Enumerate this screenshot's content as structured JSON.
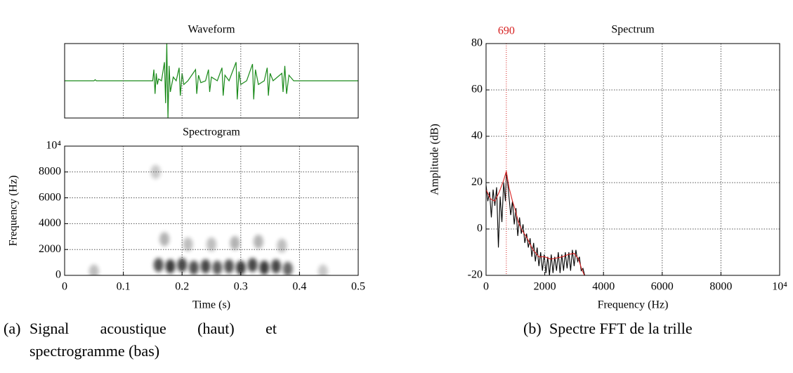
{
  "chart_data": [
    {
      "type": "line",
      "title": "Waveform",
      "series": [
        {
          "color": "#1a8a1a",
          "x": [
            0,
            0.05,
            0.052,
            0.054,
            0.15,
            0.152,
            0.154,
            0.156,
            0.158,
            0.16,
            0.165,
            0.17,
            0.172,
            0.174,
            0.176,
            0.178,
            0.18,
            0.185,
            0.19,
            0.195,
            0.197,
            0.2,
            0.203,
            0.21,
            0.223,
            0.225,
            0.228,
            0.232,
            0.24,
            0.245,
            0.247,
            0.25,
            0.26,
            0.268,
            0.27,
            0.273,
            0.28,
            0.292,
            0.294,
            0.297,
            0.3,
            0.31,
            0.32,
            0.322,
            0.325,
            0.33,
            0.34,
            0.345,
            0.347,
            0.35,
            0.355,
            0.37,
            0.372,
            0.375,
            0.378,
            0.382,
            0.39,
            0.4,
            0.5
          ],
          "values": [
            0,
            0,
            0.03,
            0,
            0,
            0.3,
            -0.35,
            0.2,
            -0.1,
            0.05,
            0,
            0.5,
            -0.6,
            1,
            -1,
            0.4,
            -0.3,
            0.1,
            0,
            0.35,
            -0.4,
            0.2,
            -0.1,
            0,
            0.3,
            -0.35,
            0.15,
            -0.05,
            0,
            0.3,
            -0.3,
            0.1,
            0,
            0.35,
            -0.4,
            0.15,
            0,
            0.5,
            -0.5,
            0.25,
            -0.1,
            0,
            0.45,
            -0.5,
            0.3,
            -0.1,
            0,
            0.35,
            -0.4,
            0.2,
            0,
            0.2,
            -0.3,
            0.4,
            -0.35,
            0.15,
            0,
            0,
            0
          ]
        }
      ],
      "xlim": [
        0,
        0.5
      ],
      "ylim": [
        -1,
        1
      ],
      "xgrid": [
        0.1,
        0.2,
        0.3,
        0.4
      ]
    },
    {
      "type": "spectrogram",
      "title": "Spectrogram",
      "xlabel": "Time (s)",
      "ylabel": "Frequency (Hz)",
      "x": [
        0.05,
        0.155,
        0.16,
        0.18,
        0.2,
        0.22,
        0.24,
        0.26,
        0.28,
        0.3,
        0.32,
        0.34,
        0.36,
        0.38,
        0.17,
        0.21,
        0.25,
        0.29,
        0.33,
        0.37,
        0.44
      ],
      "y": [
        300,
        8000,
        800,
        700,
        800,
        600,
        700,
        600,
        700,
        600,
        800,
        600,
        700,
        500,
        2800,
        2400,
        2400,
        2500,
        2600,
        2300,
        300
      ],
      "values": [
        0.3,
        0.25,
        0.8,
        0.9,
        0.85,
        0.8,
        0.85,
        0.75,
        0.8,
        0.9,
        0.85,
        0.9,
        0.85,
        0.7,
        0.35,
        0.3,
        0.3,
        0.35,
        0.35,
        0.3,
        0.25
      ],
      "xlim": [
        0,
        0.5
      ],
      "ylim": [
        0,
        10000
      ],
      "xticks": [
        0,
        0.1,
        0.2,
        0.3,
        0.4,
        0.5
      ],
      "yticks": [
        0,
        2000,
        4000,
        6000,
        8000,
        {
          "value": 10000,
          "label": "10⁴"
        }
      ],
      "grid": true
    },
    {
      "type": "line",
      "title": "Spectrum",
      "xlabel": "Frequency (Hz)",
      "ylabel": "Amplitude (dB)",
      "series": [
        {
          "color": "#000000",
          "x": [
            0,
            60,
            120,
            180,
            240,
            300,
            360,
            420,
            480,
            540,
            600,
            660,
            690,
            720,
            780,
            840,
            900,
            960,
            1020,
            1080,
            1140,
            1200,
            1260,
            1320,
            1380,
            1440,
            1500,
            1560,
            1620,
            1680,
            1740,
            1800,
            1860,
            1920,
            1980,
            2040,
            2100,
            2160,
            2220,
            2280,
            2340,
            2400,
            2460,
            2520,
            2580,
            2640,
            2700,
            2760,
            2820,
            2880,
            2940,
            3000,
            3060,
            3120,
            3180,
            3240,
            3300,
            3360
          ],
          "values": [
            19,
            12,
            16,
            5,
            17,
            10,
            18,
            -8,
            14,
            3,
            20,
            12,
            24,
            22,
            14,
            6,
            12,
            2,
            9,
            -3,
            5,
            -2,
            2,
            -6,
            -2,
            -8,
            -4,
            -12,
            -6,
            -14,
            -8,
            -16,
            -10,
            -18,
            -11,
            -19,
            -12,
            -20,
            -11,
            -19,
            -12,
            -18,
            -10,
            -19,
            -11,
            -18,
            -10,
            -17,
            -10,
            -18,
            -9,
            -16,
            -9,
            -14,
            -12,
            -18,
            -17,
            -20
          ]
        },
        {
          "color": "#d62020",
          "x": [
            0,
            150,
            300,
            450,
            600,
            690,
            780,
            900,
            1000,
            1100,
            1200,
            1400,
            1600,
            1800,
            2000,
            2200,
            2400,
            2600,
            2800,
            3000,
            3150,
            3250,
            3350
          ],
          "values": [
            17,
            13,
            12,
            16,
            21,
            25,
            18,
            12,
            8,
            3,
            0,
            -4,
            -9,
            -12,
            -12,
            -13,
            -12.5,
            -12,
            -11,
            -10.5,
            -13,
            -17,
            -20
          ]
        }
      ],
      "xlim": [
        0,
        10000
      ],
      "ylim": [
        -20,
        80
      ],
      "xticks": [
        0,
        2000,
        4000,
        6000,
        8000,
        {
          "value": 10000,
          "label": "10⁴"
        }
      ],
      "yticks": [
        -20,
        0,
        20,
        40,
        60,
        80
      ],
      "grid": true,
      "annotations": [
        {
          "x": 690,
          "color": "#d62020"
        }
      ]
    }
  ],
  "captions": [
    {
      "label": "(a)",
      "text": "Signal acoustique (haut) et spectrogramme (bas)"
    },
    {
      "label": "(b)",
      "text": "Spectre FFT de la trille"
    }
  ]
}
